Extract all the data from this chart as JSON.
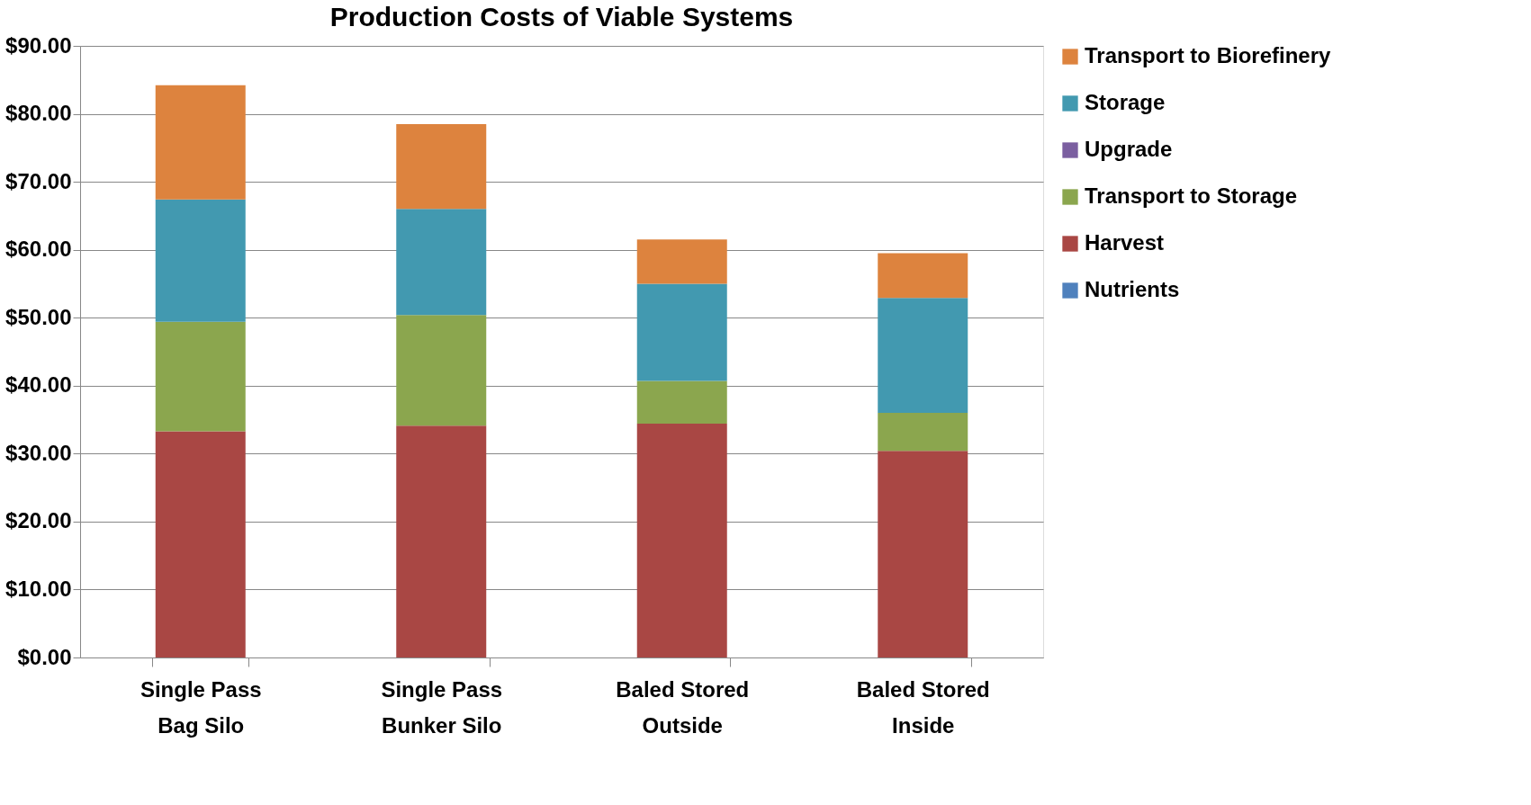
{
  "chart_data": {
    "type": "bar",
    "title": "Production Costs of Viable Systems",
    "categories": [
      "Single Pass Bag Silo",
      "Single Pass Bunker Silo",
      "Baled Stored Outside",
      "Baled Stored Inside"
    ],
    "stacked": true,
    "series": [
      {
        "name": "Nutrients",
        "color": "#4f81bd",
        "values": [
          0,
          0,
          0,
          0
        ]
      },
      {
        "name": "Harvest",
        "color": "#a94744",
        "values": [
          33.3,
          34.1,
          34.4,
          30.4
        ]
      },
      {
        "name": "Transport to Storage",
        "color": "#8ba64e",
        "values": [
          16.1,
          16.3,
          6.3,
          5.6
        ]
      },
      {
        "name": "Upgrade",
        "color": "#7b5fa0",
        "values": [
          0,
          0,
          0,
          0
        ]
      },
      {
        "name": "Storage",
        "color": "#4299b0",
        "values": [
          18.0,
          15.6,
          14.3,
          16.9
        ]
      },
      {
        "name": "Transport to Biorefinery",
        "color": "#dd833e",
        "values": [
          16.8,
          12.5,
          6.5,
          6.6
        ]
      }
    ],
    "ylim": [
      0,
      90
    ],
    "yticks": [
      {
        "value": 0,
        "label": "$0.00"
      },
      {
        "value": 10,
        "label": "$10.00"
      },
      {
        "value": 20,
        "label": "$20.00"
      },
      {
        "value": 30,
        "label": "$30.00"
      },
      {
        "value": 40,
        "label": "$40.00"
      },
      {
        "value": 50,
        "label": "$50.00"
      },
      {
        "value": 60,
        "label": "$60.00"
      },
      {
        "value": 70,
        "label": "$70.00"
      },
      {
        "value": 80,
        "label": "$80.00"
      },
      {
        "value": 90,
        "label": "$90.00"
      }
    ],
    "grid": "y",
    "legend": "right"
  }
}
